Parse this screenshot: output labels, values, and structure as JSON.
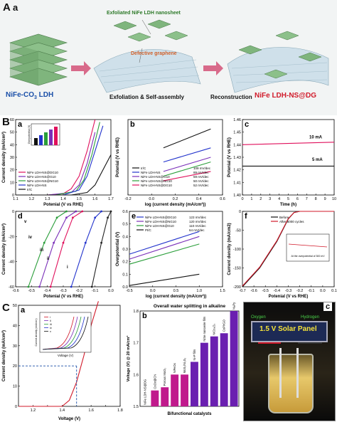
{
  "sectionA": {
    "letter": "A",
    "sub": "a",
    "exfoliated_label": "Exfoliated NiFe LDH nanosheet",
    "defective_label": "Defective graphene",
    "left_label": "NiFe-CO",
    "left_sub": "3",
    "left_label2": " LDH",
    "mid_label": "Exfoliation & Self-assembly",
    "right_label_black": "Reconstruction",
    "right_label_red": "NiFe LDH-NS@DG"
  },
  "sectionB": {
    "letter": "B",
    "a": {
      "letter": "a",
      "ylabel": "Current density (mA/cm²)",
      "xlabel": "Potenial (V vs RHE)",
      "xticks": [
        "1.1",
        "1.2",
        "1.3",
        "1.4",
        "1.5",
        "1.6",
        "1.7"
      ],
      "yticks": [
        "0",
        "10",
        "20",
        "30",
        "40",
        "50",
        "60"
      ],
      "legend": [
        "NiFe LDH-NS@DG10",
        "NiFe LDH-NS@G10",
        "NiFe LDH-NS@NG10",
        "NiFe LDH-NS",
        "Ir/C"
      ],
      "inset_ylabel": "Overpotential (V)"
    },
    "b": {
      "letter": "b",
      "ylabel": "Potenial (V vs RHE)",
      "xlabel": "log (current density (mA/cm²))",
      "xticks": [
        "-0.2",
        "0.0",
        "0.2",
        "0.4",
        "0.6"
      ],
      "legend": [
        {
          "name": "Ir/C",
          "tafel": "109 mV/dec"
        },
        {
          "name": "NiFe LDH-NS",
          "tafel": "89 mV/dec"
        },
        {
          "name": "NiFe LDH-NS@G10",
          "tafel": "59 mV/dec"
        },
        {
          "name": "NiFe LDH-NS@NG10",
          "tafel": "50 mV/dec"
        },
        {
          "name": "NiFe LDH-NS@DG10",
          "tafel": "52 mV/dec"
        }
      ]
    },
    "c": {
      "letter": "c",
      "ylabel": "Potenial (V vs RHE)",
      "xlabel": "Time (h)",
      "xticks": [
        "0",
        "1",
        "2",
        "3",
        "4",
        "5",
        "6",
        "7",
        "8",
        "9",
        "10"
      ],
      "yticks": [
        "1.40",
        "1.41",
        "1.42",
        "1.43",
        "1.44",
        "1.45",
        "1.46"
      ],
      "label_10": "10 mA",
      "label_5": "5 mA"
    },
    "d": {
      "letter": "d",
      "ylabel": "Current density (mA/cm²)",
      "xlabel": "Potenial (V vs RHE)",
      "xticks": [
        "-0.6",
        "-0.5",
        "-0.4",
        "-0.3",
        "-0.2",
        "-0.1",
        "0.0"
      ],
      "yticks": [
        "-60",
        "-40",
        "-20",
        "0"
      ],
      "curve_labels": [
        "v",
        "iv",
        "iii",
        "ii",
        "i"
      ]
    },
    "e": {
      "letter": "e",
      "ylabel": "Overpotential (V)",
      "xlabel": "log (current density (mA/cm²))",
      "xticks": [
        "-0.5",
        "0.0",
        "0.5",
        "1.0",
        "1.5"
      ],
      "yticks": [
        "0.0",
        "0.1",
        "0.2",
        "0.3",
        "0.4",
        "0.5",
        "0.6"
      ],
      "legend": [
        {
          "name": "NiFe LDH-NS@DG10",
          "tafel": "123 mV/dec"
        },
        {
          "name": "NiFe LDH-NS@NG10",
          "tafel": "120 mV/dec"
        },
        {
          "name": "NiFe LDH-NS@G10",
          "tafel": "110 mV/dec"
        },
        {
          "name": "Pt/C",
          "tafel": "64 mV/dec"
        }
      ]
    },
    "f": {
      "letter": "f",
      "ylabel": "Current density (mA/cm2)",
      "xlabel": "Potenial (V vs RHE)",
      "xticks": [
        "-0.7",
        "-0.6",
        "-0.5",
        "-0.4",
        "-0.3",
        "-0.2",
        "-0.1",
        "0.0",
        "0.1"
      ],
      "yticks": [
        "-200",
        "-150",
        "-100",
        "-50",
        "0"
      ],
      "legend": [
        "Before",
        "After 6000 cycles"
      ],
      "inset_text": "At the overpotential of 300 mV"
    }
  },
  "sectionC": {
    "letter": "C",
    "a": {
      "letter": "a",
      "ylabel": "Current density (mA/cm²)",
      "xlabel": "Voltage (V)",
      "xticks": [
        "1.2",
        "1.4",
        "1.6",
        "1.8"
      ],
      "yticks": [
        "0",
        "10",
        "20",
        "30",
        "40",
        "50"
      ],
      "inset_legend": [
        "i",
        "ii",
        "iii",
        "iv",
        "v"
      ],
      "inset_xlabel": "Voltage (V)",
      "inset_ylabel": "Current density (mA/cm²)"
    },
    "b": {
      "letter": "b",
      "title": "Overall water splitting in alkaline",
      "ylabel": "Voltage (V) @ 20 mA/cm²",
      "xlabel": "Bifunctional catalysts",
      "yticks": [
        "1.5",
        "1.6",
        "1.7",
        "1.8"
      ],
      "bars": [
        "NiFe LDH-NS@DG",
        "CoOx@CN",
        "Porous MoO₂",
        "NiFeOx",
        "MoS₂/Ni₃S₂",
        "Ni-P film",
        "NiSe nanowire film",
        "NiCo₂O₄",
        "CoP/rGO",
        "NiₓPy"
      ]
    },
    "c": {
      "letter": "c",
      "oxygen": "Oxygen",
      "hydrogen": "Hydrogen",
      "panel_text": "1.5 V Solar Panel"
    }
  },
  "chart_data": [
    {
      "type": "line",
      "panel": "B-a",
      "xlabel": "Potenial (V vs RHE)",
      "ylabel": "Current density (mA/cm²)",
      "xlim": [
        1.1,
        1.7
      ],
      "ylim": [
        0,
        60
      ],
      "series": [
        {
          "name": "NiFe LDH-NS@DG10",
          "color": "#e0105c",
          "x": [
            1.1,
            1.3,
            1.4,
            1.45,
            1.5,
            1.55,
            1.6
          ],
          "y": [
            0,
            0,
            1,
            5,
            15,
            35,
            60
          ]
        },
        {
          "name": "NiFe LDH-NS@G10",
          "color": "#7a2fb8",
          "x": [
            1.1,
            1.3,
            1.45,
            1.5,
            1.55,
            1.6
          ],
          "y": [
            0,
            0,
            2,
            8,
            25,
            50
          ]
        },
        {
          "name": "NiFe LDH-NS@NG10",
          "color": "#2a9e3a",
          "x": [
            1.1,
            1.35,
            1.48,
            1.53,
            1.58,
            1.63
          ],
          "y": [
            0,
            0,
            3,
            12,
            32,
            58
          ]
        },
        {
          "name": "NiFe LDH-NS",
          "color": "#2233cc",
          "x": [
            1.1,
            1.4,
            1.5,
            1.55,
            1.6,
            1.65
          ],
          "y": [
            0,
            0,
            4,
            15,
            35,
            55
          ]
        },
        {
          "name": "Ir/C",
          "color": "#111111",
          "x": [
            1.1,
            1.45,
            1.55,
            1.6,
            1.65,
            1.7
          ],
          "y": [
            0,
            0,
            2,
            8,
            20,
            32
          ]
        }
      ]
    },
    {
      "type": "line",
      "panel": "B-b",
      "xlabel": "log (current density (mA/cm²))",
      "ylabel": "Potenial (V vs RHE)",
      "xlim": [
        -0.2,
        0.6
      ],
      "series": [
        {
          "name": "Ir/C",
          "color": "#111111",
          "x": [
            0.1,
            0.5
          ],
          "y": [
            1.5,
            1.54
          ]
        },
        {
          "name": "NiFe LDH-NS",
          "color": "#2233cc",
          "x": [
            0.1,
            0.5
          ],
          "y": [
            1.47,
            1.5
          ]
        },
        {
          "name": "NiFe LDH-NS@G10",
          "color": "#7a2fb8",
          "x": [
            0.1,
            0.5
          ],
          "y": [
            1.45,
            1.48
          ]
        },
        {
          "name": "NiFe LDH-NS@NG10",
          "color": "#2a9e3a",
          "x": [
            0.1,
            0.5
          ],
          "y": [
            1.44,
            1.47
          ]
        },
        {
          "name": "NiFe LDH-NS@DG10",
          "color": "#e0105c",
          "x": [
            0.1,
            0.5
          ],
          "y": [
            1.43,
            1.45
          ]
        }
      ]
    },
    {
      "type": "line",
      "panel": "B-c",
      "xlabel": "Time (h)",
      "ylabel": "Potenial (V vs RHE)",
      "xlim": [
        0,
        10
      ],
      "ylim": [
        1.4,
        1.46
      ],
      "series": [
        {
          "name": "10 mA",
          "color": "#e0105c",
          "x": [
            0,
            10
          ],
          "y": [
            1.44,
            1.442
          ]
        },
        {
          "name": "5 mA",
          "color": "#111111",
          "x": [
            0,
            10
          ],
          "y": [
            1.423,
            1.423
          ]
        }
      ]
    },
    {
      "type": "line",
      "panel": "B-d",
      "xlabel": "Potenial (V vs RHE)",
      "ylabel": "Current density (mA/cm²)",
      "xlim": [
        -0.6,
        0.0
      ],
      "ylim": [
        -60,
        0
      ],
      "series": [
        {
          "name": "v",
          "color": "#222222",
          "x": [
            -0.12,
            -0.06,
            -0.02,
            0.0
          ],
          "y": [
            -60,
            -25,
            -5,
            0
          ]
        },
        {
          "name": "iv",
          "color": "#2a9e3a",
          "x": [
            -0.52,
            -0.42,
            -0.34,
            -0.28
          ],
          "y": [
            -60,
            -25,
            -5,
            0
          ]
        },
        {
          "name": "iii",
          "color": "#7a2fb8",
          "x": [
            -0.45,
            -0.36,
            -0.28,
            -0.22
          ],
          "y": [
            -60,
            -25,
            -5,
            0
          ]
        },
        {
          "name": "ii",
          "color": "#e0105c",
          "x": [
            -0.38,
            -0.3,
            -0.24,
            -0.18
          ],
          "y": [
            -60,
            -25,
            -5,
            0
          ]
        },
        {
          "name": "i",
          "color": "#2233cc",
          "x": [
            -0.25,
            -0.16,
            -0.1,
            -0.06
          ],
          "y": [
            -60,
            -25,
            -5,
            0
          ]
        }
      ]
    },
    {
      "type": "line",
      "panel": "B-e",
      "xlabel": "log (current density (mA/cm²))",
      "ylabel": "Overpotential (V)",
      "xlim": [
        -0.5,
        1.5
      ],
      "ylim": [
        0,
        0.6
      ],
      "series": [
        {
          "name": "NiFe LDH-NS@DG10",
          "color": "#2233cc",
          "x": [
            -0.5,
            1.0
          ],
          "y": [
            0.26,
            0.44
          ]
        },
        {
          "name": "NiFe LDH-NS@NG10",
          "color": "#7a2fb8",
          "x": [
            -0.5,
            1.0
          ],
          "y": [
            0.22,
            0.4
          ]
        },
        {
          "name": "NiFe LDH-NS@G10",
          "color": "#2a9e3a",
          "x": [
            -0.5,
            1.0
          ],
          "y": [
            0.18,
            0.34
          ]
        },
        {
          "name": "Pt/C",
          "color": "#111111",
          "x": [
            -0.5,
            1.0
          ],
          "y": [
            0.01,
            0.1
          ]
        }
      ]
    },
    {
      "type": "line",
      "panel": "B-f",
      "xlabel": "Potenial (V vs RHE)",
      "ylabel": "Current density (mA/cm2)",
      "xlim": [
        -0.7,
        0.1
      ],
      "ylim": [
        -200,
        0
      ],
      "series": [
        {
          "name": "Before",
          "color": "#111111",
          "x": [
            -0.7,
            -0.55,
            -0.4,
            -0.3,
            -0.25,
            -0.2,
            0.1
          ],
          "y": [
            -200,
            -150,
            -80,
            -20,
            -3,
            0,
            0
          ]
        },
        {
          "name": "After 6000 cycles",
          "color": "#d11a2a",
          "x": [
            -0.7,
            -0.55,
            -0.4,
            -0.3,
            -0.25,
            -0.2,
            0.1
          ],
          "y": [
            -198,
            -148,
            -78,
            -19,
            -3,
            0,
            0
          ]
        }
      ]
    },
    {
      "type": "line",
      "panel": "C-a",
      "xlabel": "Voltage (V)",
      "ylabel": "Current density (mA/cm²)",
      "xlim": [
        1.1,
        1.8
      ],
      "ylim": [
        0,
        50
      ],
      "series": [
        {
          "name": "NiFe LDH-NS@DG",
          "color": "#d11a2a",
          "x": [
            1.1,
            1.4,
            1.45,
            1.5,
            1.55,
            1.6,
            1.65
          ],
          "y": [
            0,
            0,
            3,
            12,
            25,
            40,
            52
          ]
        }
      ],
      "annotation": {
        "x": 1.5,
        "y": 20
      }
    },
    {
      "type": "bar",
      "panel": "C-b",
      "title": "Overall water splitting in alkaline",
      "xlabel": "Bifunctional catalysts",
      "ylabel": "Voltage (V) @ 20 mA/cm²",
      "ylim": [
        1.5,
        1.8
      ],
      "categories": [
        "NiFe LDH-NS@DG",
        "CoOx@CN",
        "Porous MoO₂",
        "NiFeOx",
        "MoS₂/Ni₃S₂",
        "Ni-P film",
        "NiSe nanowire film",
        "NiCo₂O₄",
        "CoP/rGO",
        "NiₓPy"
      ],
      "values": [
        1.5,
        1.55,
        1.56,
        1.6,
        1.6,
        1.64,
        1.7,
        1.72,
        1.73,
        1.8
      ],
      "colors": [
        "#d11a2a",
        "#c01a8c",
        "#c01a8c",
        "#c01a8c",
        "#c01a8c",
        "#6a1fb0",
        "#6a1fb0",
        "#6a1fb0",
        "#6a1fb0",
        "#6a1fb0"
      ]
    }
  ]
}
